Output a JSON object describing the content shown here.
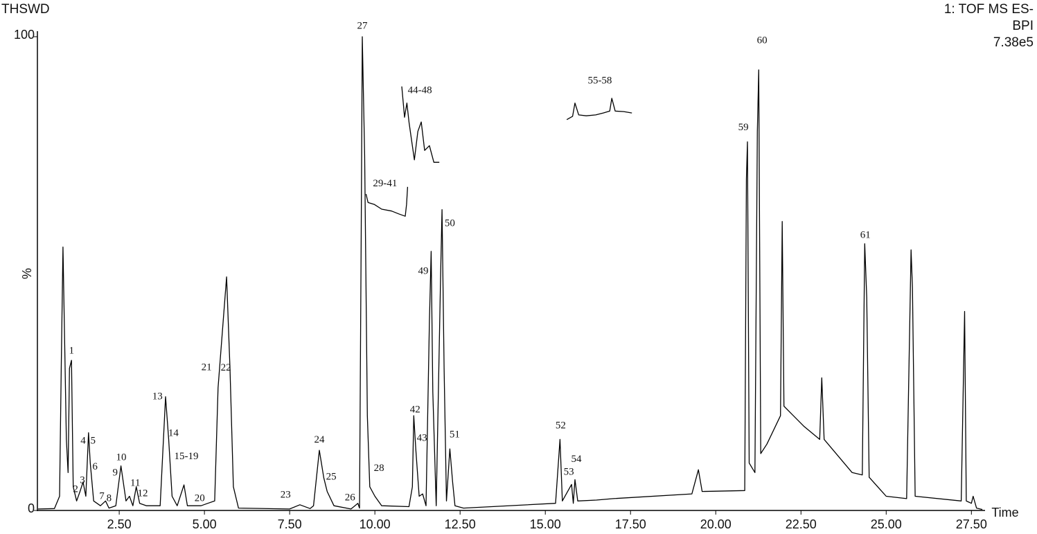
{
  "chart_data": {
    "type": "line",
    "title": "THSWD",
    "info": [
      "1: TOF MS ES-",
      "BPI",
      "7.38e5"
    ],
    "xlabel": "Time",
    "ylabel": "%",
    "xlim": [
      0.1,
      27.9
    ],
    "ylim": [
      0,
      100
    ],
    "xticks": [
      {
        "value": 2.5,
        "label": "2.50"
      },
      {
        "value": 5,
        "label": "5.00"
      },
      {
        "value": 7.5,
        "label": "7.50"
      },
      {
        "value": 10,
        "label": "10.00"
      },
      {
        "value": 12.5,
        "label": "12.50"
      },
      {
        "value": 15,
        "label": "15.00"
      },
      {
        "value": 17.5,
        "label": "17.50"
      },
      {
        "value": 20,
        "label": "20.00"
      },
      {
        "value": 22.5,
        "label": "22.50"
      },
      {
        "value": 25,
        "label": "25.00"
      },
      {
        "value": 27.5,
        "label": "27.50"
      }
    ],
    "yticks": [
      0,
      100
    ],
    "series": [
      {
        "color": "#000000",
        "x": [
          0.12,
          0.6,
          0.75,
          0.8,
          0.85,
          0.9,
          0.95,
          1.0,
          1.04,
          1.1,
          1.15,
          1.25,
          1.35,
          1.44,
          1.52,
          1.6,
          1.65,
          1.75,
          1.95,
          2.1,
          2.2,
          2.4,
          2.55,
          2.7,
          2.8,
          2.9,
          3.0,
          3.1,
          3.3,
          3.7,
          3.86,
          3.95,
          4.05,
          4.2,
          4.4,
          4.5,
          4.9,
          5.1,
          5.3,
          5.4,
          5.55,
          5.65,
          5.75,
          5.85,
          6.0,
          7.5,
          7.8,
          8.1,
          8.2,
          8.37,
          8.5,
          8.6,
          8.8,
          9.3,
          9.5,
          9.55,
          9.6,
          9.63,
          9.7,
          9.78,
          9.85,
          10.0,
          10.2,
          11.0,
          11.1,
          11.14,
          11.2,
          11.3,
          11.4,
          11.5,
          11.6,
          11.65,
          11.7,
          11.8,
          11.93,
          11.97,
          12.03,
          12.1,
          12.2,
          12.28,
          12.35,
          12.6,
          15.3,
          15.43,
          15.5,
          15.77,
          15.82,
          15.87,
          15.95,
          16.5,
          17.0,
          19.3,
          19.49,
          19.6,
          20.85,
          20.9,
          20.93,
          20.98,
          21.15,
          21.22,
          21.26,
          21.32,
          21.5,
          21.9,
          21.95,
          22.0,
          22.58,
          23.05,
          23.11,
          23.18,
          24.0,
          24.3,
          24.37,
          24.43,
          24.5,
          25.0,
          25.6,
          25.73,
          25.77,
          25.85,
          27.2,
          27.3,
          27.35,
          27.5,
          27.55,
          27.65,
          27.82
        ],
        "values": [
          0.3,
          0.4,
          3,
          30,
          55.6,
          35,
          15,
          8,
          30,
          31.7,
          5,
          2,
          4,
          6,
          3,
          16.4,
          10,
          2,
          1,
          2,
          0.5,
          1,
          9.4,
          2,
          3,
          1,
          5,
          1.5,
          1,
          1,
          24,
          15,
          3,
          1,
          5.4,
          1,
          1,
          1.5,
          2,
          25.9,
          40,
          49.3,
          30,
          5,
          0.5,
          0.3,
          1.2,
          0.4,
          1,
          12.7,
          6.9,
          4,
          1,
          0.3,
          1.5,
          0.5,
          60,
          100,
          75,
          20,
          5,
          3,
          1,
          0.8,
          5,
          20,
          13,
          3,
          3.5,
          1,
          40,
          54.7,
          25,
          1,
          50,
          63.5,
          30,
          2,
          13,
          6,
          1,
          0.5,
          1.5,
          15,
          2,
          5.5,
          1.5,
          6.5,
          2,
          2.2,
          2.5,
          3.5,
          8.6,
          4,
          4.2,
          70,
          77.8,
          10,
          8,
          80,
          93,
          12,
          14,
          20,
          61,
          22,
          17.8,
          15,
          28,
          15,
          8,
          7.5,
          56.3,
          45,
          7,
          3,
          2.5,
          55,
          47,
          3,
          2,
          42,
          2,
          1.5,
          3,
          0.5,
          0.2
        ]
      },
      {
        "color": "#000000",
        "x": [
          9.74,
          9.8,
          9.98,
          10.2,
          10.49,
          10.7,
          10.89,
          10.93,
          10.96
        ],
        "values": [
          66.8,
          65,
          64.6,
          63.6,
          63.2,
          62.6,
          62.1,
          64.6,
          68.3
        ]
      },
      {
        "color": "#000000",
        "x": [
          10.79,
          10.87,
          10.94,
          11.0,
          11.06,
          11.16,
          11.26,
          11.36,
          11.46,
          11.6,
          11.73,
          11.89
        ],
        "values": [
          89.5,
          83,
          86,
          82,
          79,
          74,
          80,
          82,
          76,
          77,
          73.5,
          73.5
        ]
      },
      {
        "color": "#000000",
        "x": [
          15.63,
          15.8,
          15.87,
          15.98,
          16.2,
          16.48,
          16.7,
          16.89,
          16.95,
          17.05,
          17.3,
          17.54
        ],
        "values": [
          82.5,
          83.2,
          86,
          83.5,
          83.3,
          83.5,
          83.9,
          84.3,
          87,
          84.3,
          84.2,
          83.9
        ]
      }
    ],
    "annotations": [
      {
        "text": "1",
        "x": 1.1,
        "y": 33.6
      },
      {
        "text": "2",
        "x": 1.22,
        "y": 4.4
      },
      {
        "text": "3",
        "x": 1.42,
        "y": 6.3
      },
      {
        "text": "4",
        "x": 1.44,
        "y": 14.6
      },
      {
        "text": "5",
        "x": 1.73,
        "y": 14.6
      },
      {
        "text": "6",
        "x": 1.79,
        "y": 9.1
      },
      {
        "text": "7",
        "x": 1.99,
        "y": 2.9
      },
      {
        "text": "8",
        "x": 2.2,
        "y": 2.5
      },
      {
        "text": "9",
        "x": 2.38,
        "y": 7.9
      },
      {
        "text": "10",
        "x": 2.56,
        "y": 11.1
      },
      {
        "text": "11",
        "x": 2.97,
        "y": 5.7
      },
      {
        "text": "12",
        "x": 3.19,
        "y": 3.5
      },
      {
        "text": "13",
        "x": 3.62,
        "y": 24
      },
      {
        "text": "14",
        "x": 4.09,
        "y": 16.2
      },
      {
        "text": "15-19",
        "x": 4.47,
        "y": 11.3
      },
      {
        "text": "20",
        "x": 4.86,
        "y": 2.5
      },
      {
        "text": "21",
        "x": 5.06,
        "y": 30.1
      },
      {
        "text": "22",
        "x": 5.63,
        "y": 30
      },
      {
        "text": "23",
        "x": 7.38,
        "y": 3.2
      },
      {
        "text": "24",
        "x": 8.37,
        "y": 14.8
      },
      {
        "text": "25",
        "x": 8.72,
        "y": 7
      },
      {
        "text": "26",
        "x": 9.27,
        "y": 2.6
      },
      {
        "text": "27",
        "x": 9.63,
        "y": 102.2
      },
      {
        "text": "28",
        "x": 10.12,
        "y": 8.8
      },
      {
        "text": "29-41",
        "x": 10.3,
        "y": 68.9
      },
      {
        "text": "42",
        "x": 11.18,
        "y": 21.2
      },
      {
        "text": "43",
        "x": 11.38,
        "y": 15.2
      },
      {
        "text": "44-48",
        "x": 11.32,
        "y": 88.6
      },
      {
        "text": "49",
        "x": 11.42,
        "y": 50.4
      },
      {
        "text": "50",
        "x": 12.2,
        "y": 60.5
      },
      {
        "text": "51",
        "x": 12.34,
        "y": 15.9
      },
      {
        "text": "52",
        "x": 15.45,
        "y": 17.8
      },
      {
        "text": "53",
        "x": 15.69,
        "y": 8
      },
      {
        "text": "54",
        "x": 15.91,
        "y": 10.7
      },
      {
        "text": "55-58",
        "x": 16.6,
        "y": 90.6
      },
      {
        "text": "59",
        "x": 20.81,
        "y": 80.8
      },
      {
        "text": "60",
        "x": 21.36,
        "y": 99.1
      },
      {
        "text": "61",
        "x": 24.39,
        "y": 58
      }
    ]
  }
}
